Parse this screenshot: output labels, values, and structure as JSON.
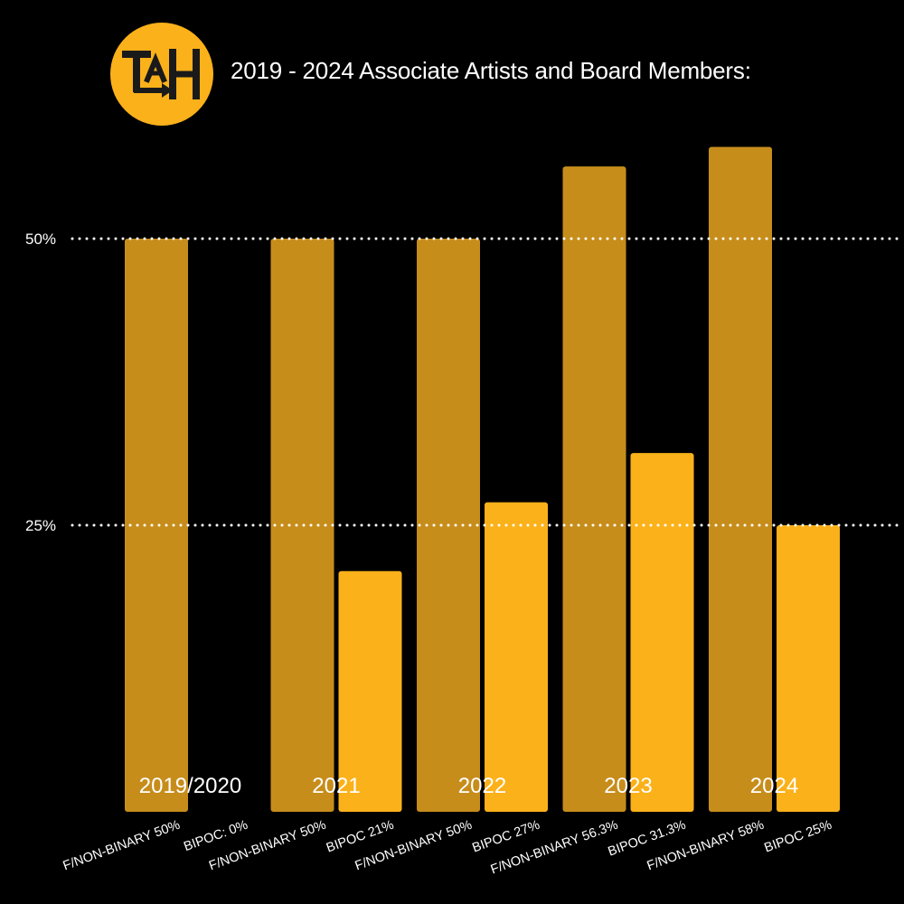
{
  "logo": {
    "text": "TAH"
  },
  "title": "2019 - 2024 Associate Artists and Board Members:",
  "colors": {
    "background": "#000000",
    "f_nonbinary_bar": "#C78D1B",
    "bipoc_bar": "#FBB11A",
    "logo_circle": "#FBB11A",
    "logo_text": "#1A1A1A",
    "gridline": "#FFFFFF"
  },
  "chart_data": {
    "type": "bar",
    "title": "2019 - 2024 Associate Artists and Board Members:",
    "xlabel": "",
    "ylabel": "",
    "ylim": [
      0,
      66.4
    ],
    "yticks": [
      {
        "value": 25,
        "label": "25%"
      },
      {
        "value": 50,
        "label": "50%"
      }
    ],
    "grid": "dotted horizontal at 25% and 50%",
    "categories": [
      "2019/2020",
      "2021",
      "2022",
      "2023",
      "2024"
    ],
    "series": [
      {
        "key": "f_nonbinary",
        "values": [
          50,
          50,
          50,
          56.3,
          58
        ],
        "labels": [
          "F/NON-BINARY 50%",
          "F/NON-BINARY 50%",
          "F/NON-BINARY 50%",
          "F/NON-BINARY 56.3%",
          "F/NON-BINARY 58%"
        ]
      },
      {
        "key": "bipoc",
        "values": [
          0,
          21,
          27,
          31.3,
          25
        ],
        "labels": [
          "BIPOC: 0%",
          "BIPOC 21%",
          "BIPOC 27%",
          "BIPOC 31.3%",
          "BIPOC 25%"
        ]
      }
    ]
  }
}
